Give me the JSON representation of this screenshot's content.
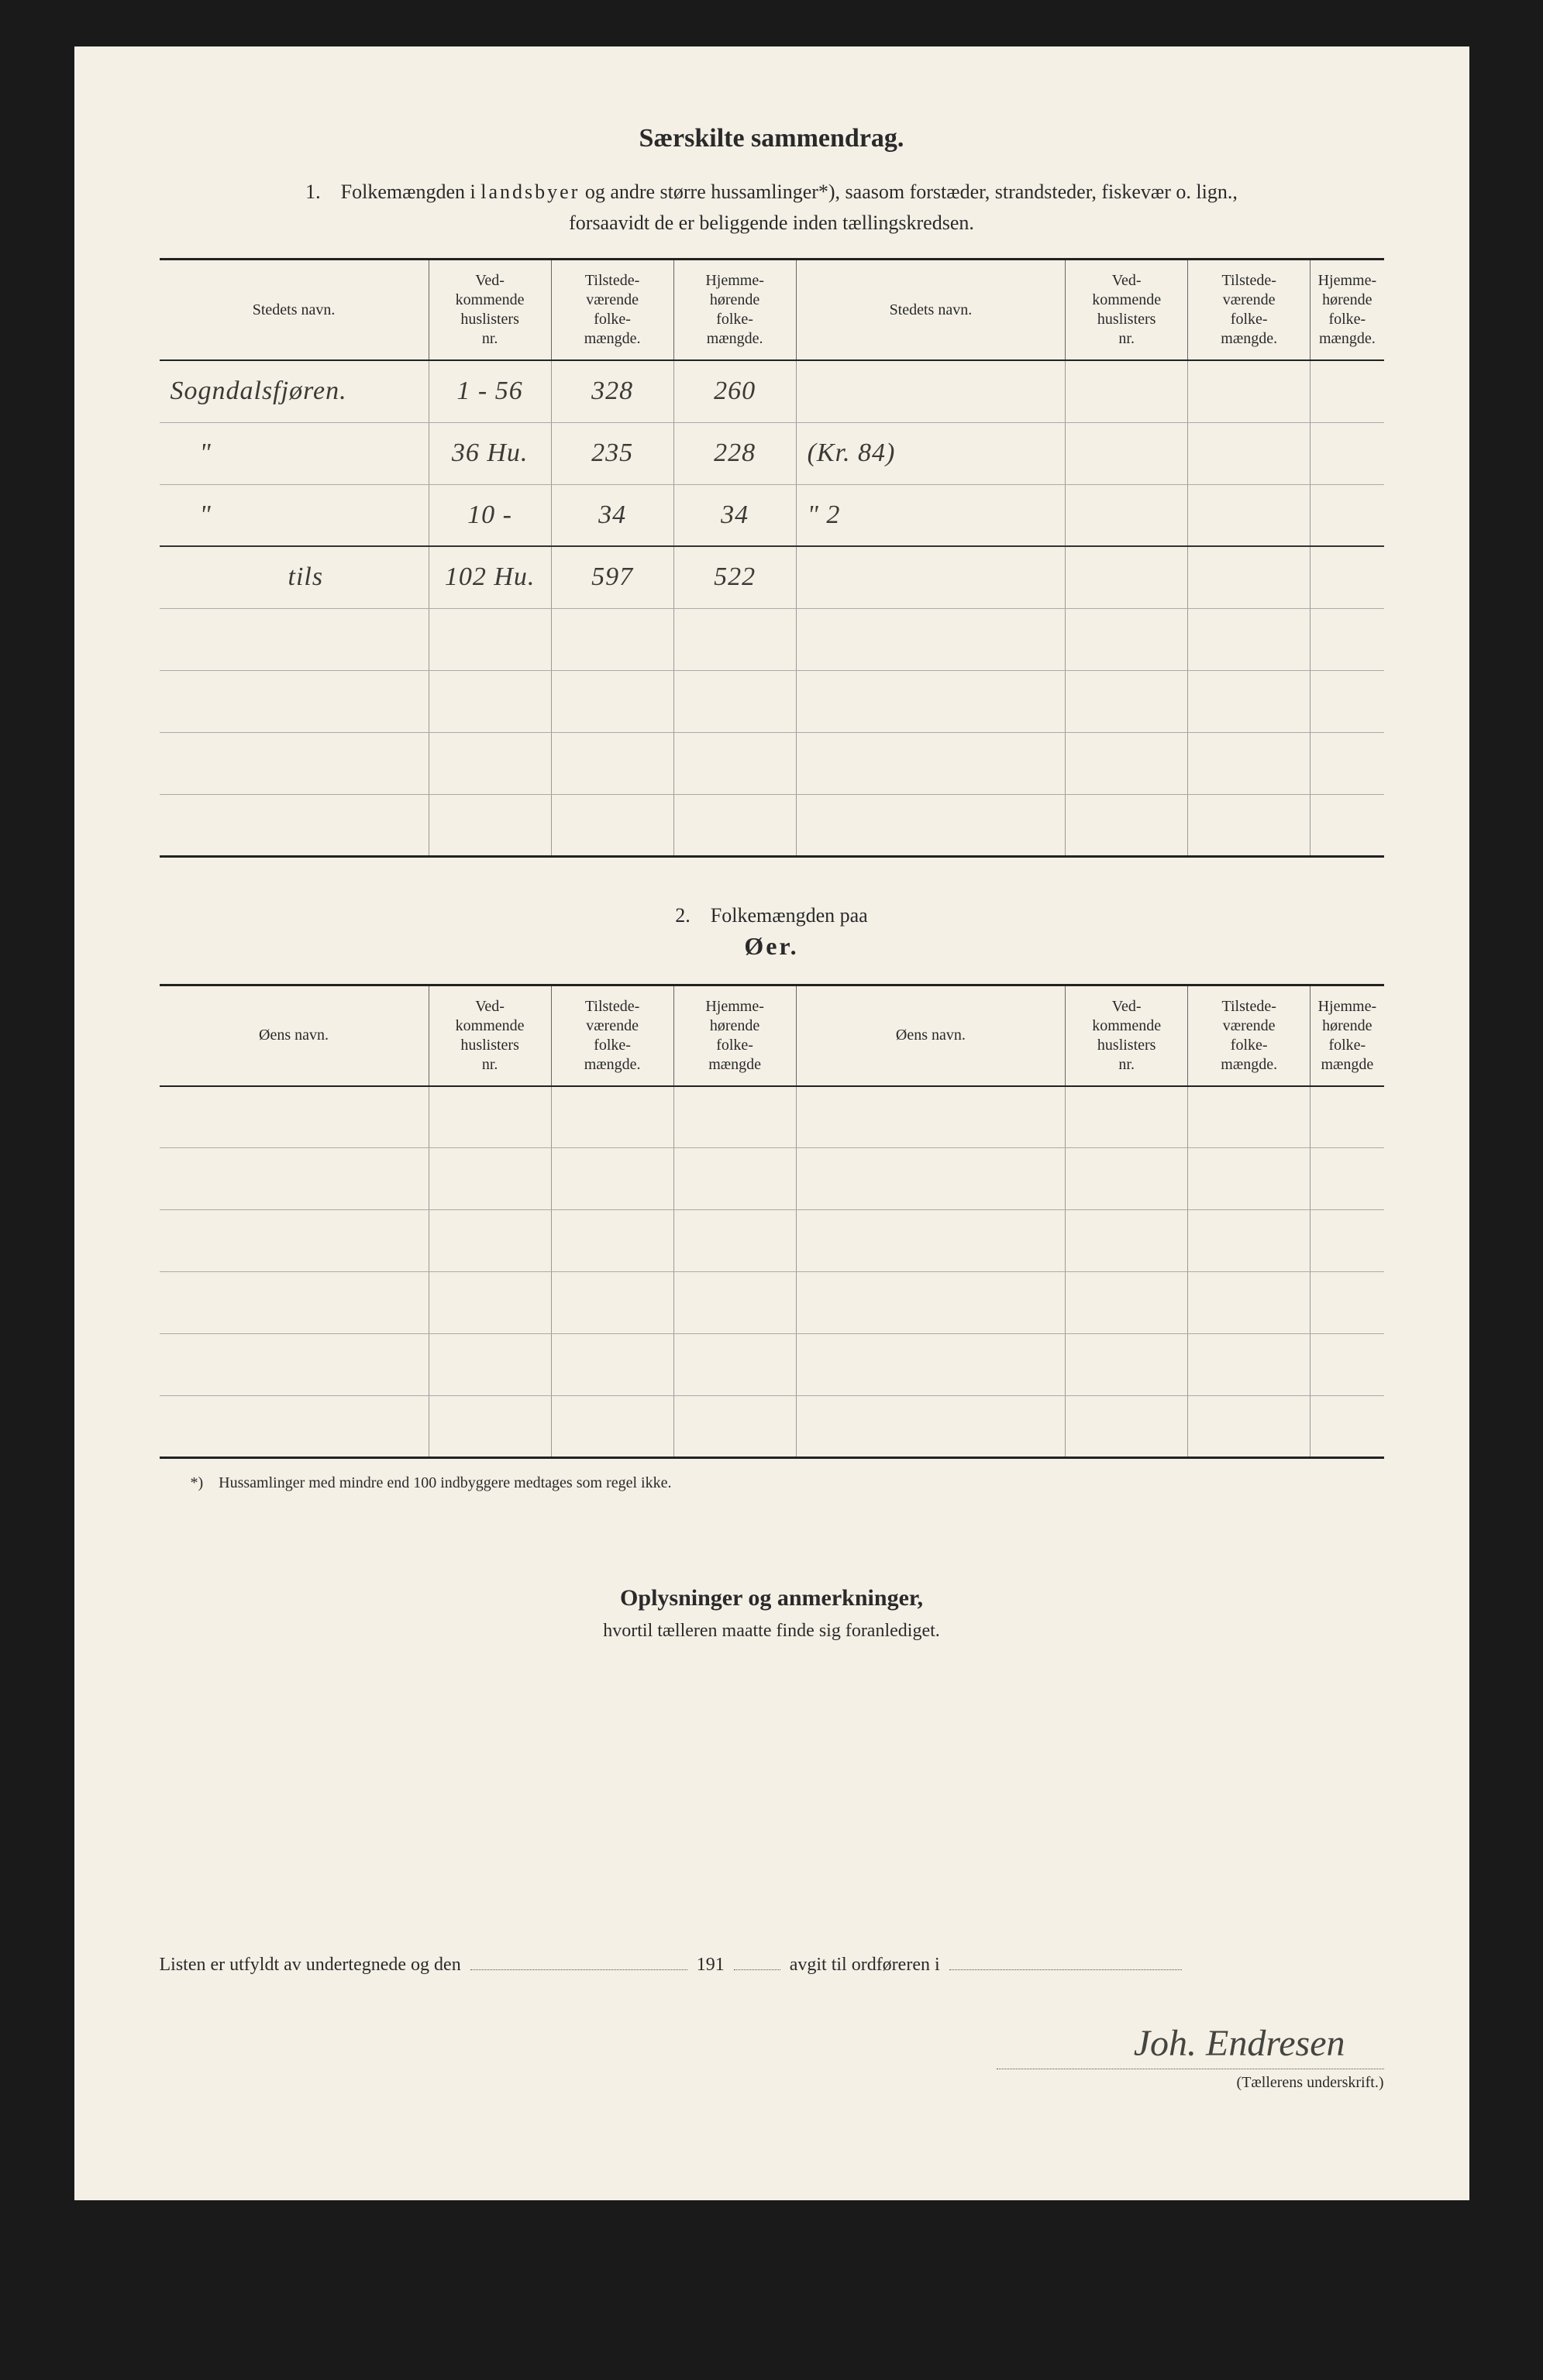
{
  "header": {
    "title": "Særskilte sammendrag.",
    "subtitle_line1_prefix": "1. Folkemængden i ",
    "subtitle_line1_spaced": "landsbyer",
    "subtitle_line1_suffix": " og andre større hussamlinger*), saasom forstæder, strandsteder, fiskevær o. lign.,",
    "subtitle_line2": "forsaavidt de er beliggende inden tællingskredsen."
  },
  "table1": {
    "headers": {
      "name": "Stedets navn.",
      "c1": "Ved-\nkommende\nhuslisters\nnr.",
      "c2": "Tilstede-\nværende\nfolke-\nmængde.",
      "c3": "Hjemme-\nhørende\nfolke-\nmængde."
    },
    "rows": [
      {
        "name": "Sogndalsfjøren.",
        "c1": "1 - 56",
        "c2": "328",
        "c3": "260",
        "name2": "",
        "d1": "",
        "d2": "",
        "d3": ""
      },
      {
        "name": "    \"",
        "c1": "36 Hu.",
        "c2": "235",
        "c3": "228",
        "name2": "(Kr. 84)",
        "d1": "",
        "d2": "",
        "d3": ""
      },
      {
        "name": "    \"",
        "c1": "10 -",
        "c2": "34",
        "c3": "34",
        "name2": "\" 2",
        "d1": "",
        "d2": "",
        "d3": ""
      },
      {
        "name": "                tils",
        "c1": "102 Hu.",
        "c2": "597",
        "c3": "522",
        "name2": "",
        "d1": "",
        "d2": "",
        "d3": ""
      },
      {
        "name": "",
        "c1": "",
        "c2": "",
        "c3": "",
        "name2": "",
        "d1": "",
        "d2": "",
        "d3": ""
      },
      {
        "name": "",
        "c1": "",
        "c2": "",
        "c3": "",
        "name2": "",
        "d1": "",
        "d2": "",
        "d3": ""
      },
      {
        "name": "",
        "c1": "",
        "c2": "",
        "c3": "",
        "name2": "",
        "d1": "",
        "d2": "",
        "d3": ""
      },
      {
        "name": "",
        "c1": "",
        "c2": "",
        "c3": "",
        "name2": "",
        "d1": "",
        "d2": "",
        "d3": ""
      }
    ]
  },
  "section2": {
    "num": "2. Folkemængden paa",
    "title": "Øer."
  },
  "table2": {
    "headers": {
      "name": "Øens navn.",
      "c1": "Ved-\nkommende\nhuslisters\nnr.",
      "c2": "Tilstede-\nværende\nfolke-\nmængde.",
      "c3": "Hjemme-\nhørende\nfolke-\nmængde"
    },
    "rows": [
      {
        "name": "",
        "c1": "",
        "c2": "",
        "c3": "",
        "name2": "",
        "d1": "",
        "d2": "",
        "d3": ""
      },
      {
        "name": "",
        "c1": "",
        "c2": "",
        "c3": "",
        "name2": "",
        "d1": "",
        "d2": "",
        "d3": ""
      },
      {
        "name": "",
        "c1": "",
        "c2": "",
        "c3": "",
        "name2": "",
        "d1": "",
        "d2": "",
        "d3": ""
      },
      {
        "name": "",
        "c1": "",
        "c2": "",
        "c3": "",
        "name2": "",
        "d1": "",
        "d2": "",
        "d3": ""
      },
      {
        "name": "",
        "c1": "",
        "c2": "",
        "c3": "",
        "name2": "",
        "d1": "",
        "d2": "",
        "d3": ""
      },
      {
        "name": "",
        "c1": "",
        "c2": "",
        "c3": "",
        "name2": "",
        "d1": "",
        "d2": "",
        "d3": ""
      }
    ]
  },
  "footnote": "*) Hussamlinger med mindre end 100 indbyggere medtages som regel ikke.",
  "info": {
    "title": "Oplysninger og anmerkninger,",
    "sub": "hvortil tælleren maatte finde sig foranlediget."
  },
  "footer": {
    "prefix": "Listen er utfyldt av undertegnede og den",
    "mid": "191",
    "suffix": "avgit til ordføreren i",
    "signature": "Joh. Endresen",
    "sig_label": "(Tællerens underskrift.)"
  },
  "styling": {
    "page_bg": "#f4f0e6",
    "outer_bg": "#1a1a1a",
    "text_color": "#2a2a2a",
    "handwriting_color": "#3a3a36",
    "table_border": "#222",
    "cell_border": "#999"
  }
}
